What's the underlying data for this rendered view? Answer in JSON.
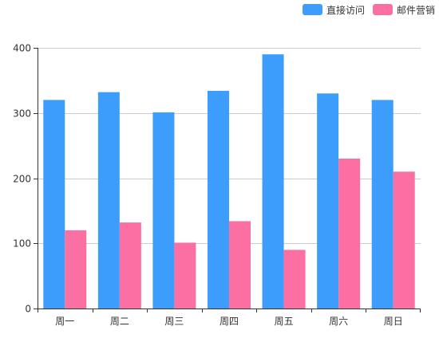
{
  "chart_data": {
    "type": "bar",
    "categories": [
      "周一",
      "周二",
      "周三",
      "周四",
      "周五",
      "周六",
      "周日"
    ],
    "series": [
      {
        "name": "直接访问",
        "color": "#3d9dfc",
        "values": [
          320,
          332,
          301,
          334,
          390,
          330,
          320
        ]
      },
      {
        "name": "邮件营销",
        "color": "#fc6fa2",
        "values": [
          120,
          132,
          101,
          134,
          90,
          230,
          210
        ]
      }
    ],
    "ylim": [
      0,
      400
    ],
    "yticks": [
      0,
      100,
      200,
      300,
      400
    ],
    "grid": true,
    "legend_position": "top-right"
  }
}
